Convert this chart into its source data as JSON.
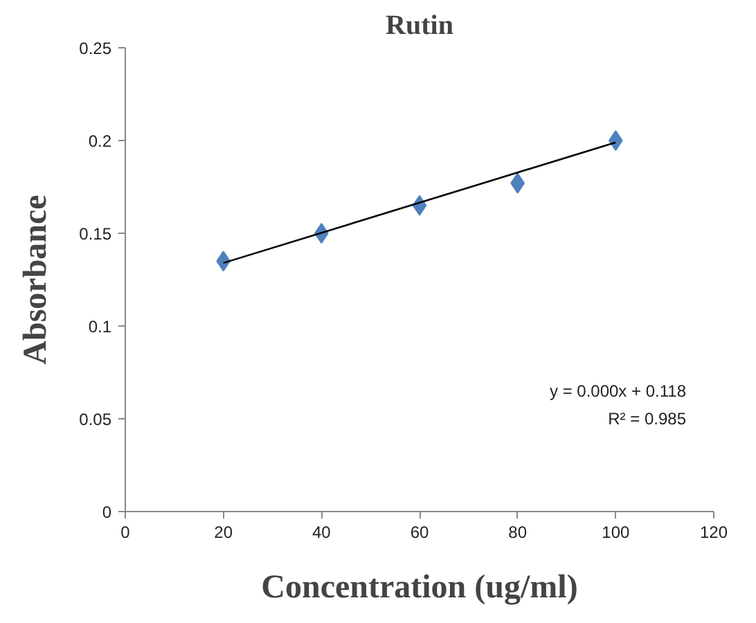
{
  "chart_data": {
    "type": "scatter",
    "title": "Rutin",
    "xlabel": "Concentration (ug/ml)",
    "ylabel": "Absorbance",
    "x": [
      20,
      40,
      60,
      80,
      100
    ],
    "series": [
      {
        "color": "#4f81bd",
        "marker": "diamond",
        "values": [
          0.135,
          0.15,
          0.165,
          0.177,
          0.2
        ]
      },
      {
        "type": "line",
        "color": "#000000",
        "x": [
          20,
          100
        ],
        "values": [
          0.134,
          0.199
        ]
      }
    ],
    "xlim": [
      0,
      120
    ],
    "xticks": [
      0,
      20,
      40,
      60,
      80,
      100,
      120
    ],
    "ylim": [
      0,
      0.25
    ],
    "yticks": [
      0,
      {
        "value": 0.05,
        "label": "0.05"
      },
      {
        "value": 0.1,
        "label": "0.1"
      },
      {
        "value": 0.15,
        "label": "0.15"
      },
      {
        "value": 0.2,
        "label": "0.2"
      },
      {
        "value": 0.25,
        "label": "0.25"
      }
    ],
    "grid": false,
    "annotations": [
      "y = 0.000x + 0.118",
      "R² = 0.985"
    ]
  }
}
